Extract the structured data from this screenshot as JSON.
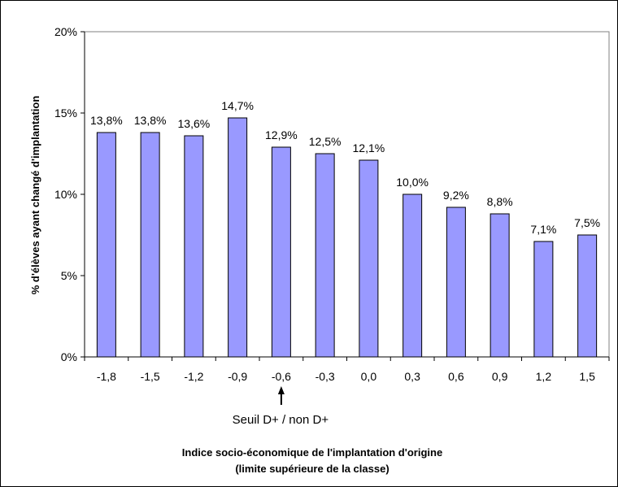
{
  "chart_data": {
    "type": "bar",
    "categories": [
      "-1,8",
      "-1,5",
      "-1,2",
      "-0,9",
      "-0,6",
      "-0,3",
      "0,0",
      "0,3",
      "0,6",
      "0,9",
      "1,2",
      "1,5"
    ],
    "values": [
      13.8,
      13.8,
      13.6,
      14.7,
      12.9,
      12.5,
      12.1,
      10.0,
      9.2,
      8.8,
      7.1,
      7.5
    ],
    "data_labels": [
      "13,8%",
      "13,8%",
      "13,6%",
      "14,7%",
      "12,9%",
      "12,5%",
      "12,1%",
      "10,0%",
      "9,2%",
      "8,8%",
      "7,1%",
      "7,5%"
    ],
    "ylabel": "% d'élèves ayant changé d'implantation",
    "xlabel_line1": "Indice socio-économique de l'implantation d'origine",
    "xlabel_line2": "(limite supérieure de la classe)",
    "ylim": [
      0,
      20
    ],
    "yticks": [
      0,
      5,
      10,
      15,
      20
    ],
    "ytick_labels": [
      "0%",
      "5%",
      "10%",
      "15%",
      "20%"
    ],
    "grid": false,
    "bar_color": "#9999ff",
    "annotation": {
      "text": "Seuil D+ / non D+",
      "category": "-0,6"
    }
  }
}
